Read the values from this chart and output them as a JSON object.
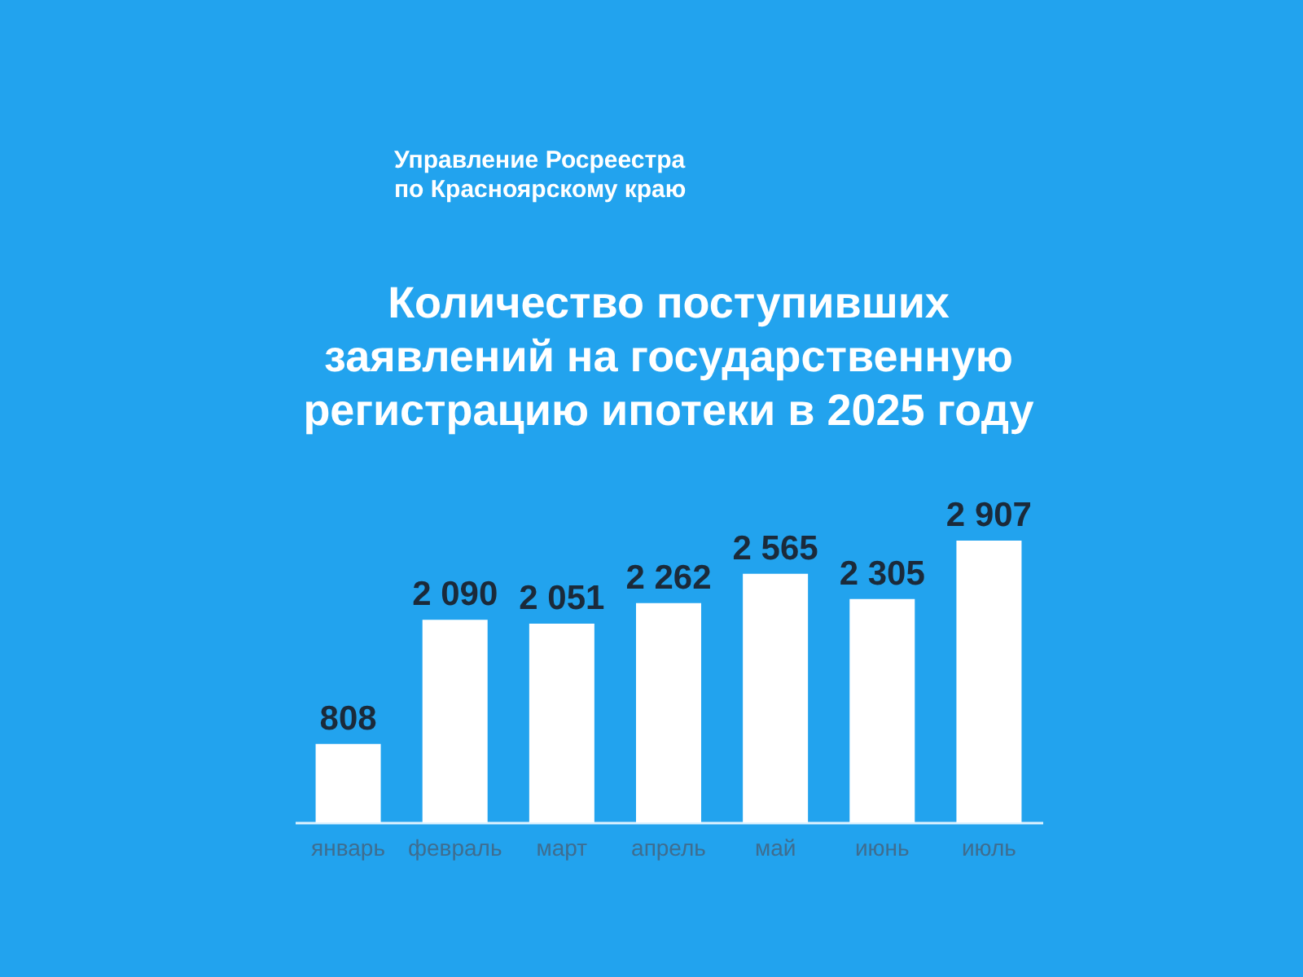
{
  "chart_data": {
    "type": "bar",
    "title": "Количество поступивших заявлений на государственную регистрацию ипотеки в 2025 году",
    "annotations": [
      "Управление Росреестра по Красноярскому краю"
    ],
    "categories": [
      "январь",
      "февраль",
      "март",
      "апрель",
      "май",
      "июнь",
      "июль"
    ],
    "values": [
      808,
      2090,
      2051,
      2262,
      2565,
      2305,
      2907
    ],
    "color": "#ffffff",
    "data_labels": true
  }
}
